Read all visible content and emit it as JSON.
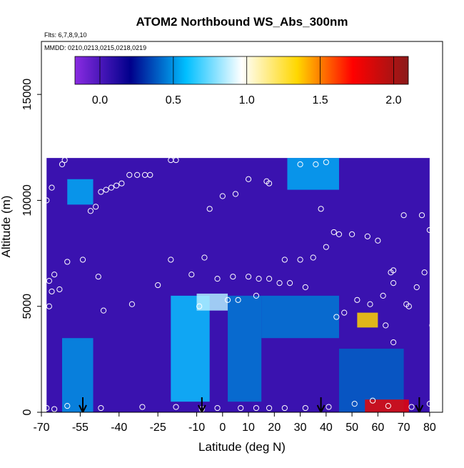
{
  "chart_data": {
    "type": "heatmap",
    "title": "ATOM2 Northbound WS_Abs_300nm",
    "note_flights": "Flts: 6,7,8,9,10",
    "note_dates": "MMDD: 0210,0213,0215,0218,0219",
    "xlabel": "Latitude (deg N)",
    "ylabel": "Altitude (m)",
    "xlim": [
      -70,
      85
    ],
    "ylim": [
      0,
      17500
    ],
    "x_ticks": [
      -70,
      -55,
      -40,
      -25,
      -10,
      0,
      10,
      20,
      30,
      40,
      50,
      60,
      70,
      80
    ],
    "x_tick_labels": [
      "-70",
      "-55",
      "-40",
      "-25",
      "-10",
      "0",
      "10",
      "20",
      "30",
      "40",
      "50",
      "60",
      "70",
      "80"
    ],
    "y_ticks": [
      0,
      5000,
      10000,
      15000
    ],
    "y_tick_labels": [
      "0",
      "5000",
      "10000",
      "15000"
    ],
    "colorbar": {
      "range": [
        -0.17,
        2.1
      ],
      "ticks": [
        0.0,
        0.5,
        1.0,
        1.5,
        2.0
      ],
      "tick_labels": [
        "0.0",
        "0.5",
        "1.0",
        "1.5",
        "2.0"
      ],
      "colors": [
        "#8a2be2",
        "#00008b",
        "#00bfff",
        "#ffffff",
        "#ffd700",
        "#ff0000",
        "#8b1a1a"
      ]
    },
    "arrows_x": [
      -54,
      -8,
      38,
      76
    ],
    "regions": [
      {
        "x": [
          -68,
          80
        ],
        "y": [
          0,
          12000
        ],
        "value": 0.05
      },
      {
        "x": [
          -62,
          -50
        ],
        "y": [
          0,
          3500
        ],
        "value": 0.5
      },
      {
        "x": [
          -20,
          -5
        ],
        "y": [
          500,
          5500
        ],
        "value": 0.6
      },
      {
        "x": [
          -10,
          2
        ],
        "y": [
          4800,
          5600
        ],
        "value": 0.85
      },
      {
        "x": [
          2,
          15
        ],
        "y": [
          500,
          5500
        ],
        "value": 0.45
      },
      {
        "x": [
          15,
          45
        ],
        "y": [
          3500,
          5500
        ],
        "value": 0.45
      },
      {
        "x": [
          45,
          70
        ],
        "y": [
          0,
          3000
        ],
        "value": 0.4
      },
      {
        "x": [
          52,
          60
        ],
        "y": [
          4000,
          4700
        ],
        "value": 1.35
      },
      {
        "x": [
          55,
          72
        ],
        "y": [
          0,
          600
        ],
        "value": 1.8
      },
      {
        "x": [
          -60,
          -50
        ],
        "y": [
          9800,
          11000
        ],
        "value": 0.55
      },
      {
        "x": [
          25,
          45
        ],
        "y": [
          10500,
          12000
        ],
        "value": 0.55
      }
    ],
    "sample_points": [
      {
        "x": -68,
        "y": 10000
      },
      {
        "x": -66,
        "y": 10600
      },
      {
        "x": -62,
        "y": 11700
      },
      {
        "x": -61,
        "y": 11900
      },
      {
        "x": -67,
        "y": 6200
      },
      {
        "x": -66,
        "y": 5700
      },
      {
        "x": -67,
        "y": 5000
      },
      {
        "x": -65,
        "y": 6500
      },
      {
        "x": -63,
        "y": 5800
      },
      {
        "x": -60,
        "y": 7100
      },
      {
        "x": -54,
        "y": 7200
      },
      {
        "x": -48,
        "y": 6400
      },
      {
        "x": -46,
        "y": 4800
      },
      {
        "x": -51,
        "y": 9500
      },
      {
        "x": -49,
        "y": 9700
      },
      {
        "x": -47,
        "y": 10400
      },
      {
        "x": -45,
        "y": 10500
      },
      {
        "x": -43,
        "y": 10600
      },
      {
        "x": -41,
        "y": 10700
      },
      {
        "x": -39,
        "y": 10800
      },
      {
        "x": -36,
        "y": 11200
      },
      {
        "x": -33,
        "y": 11200
      },
      {
        "x": -30,
        "y": 11200
      },
      {
        "x": -28,
        "y": 11200
      },
      {
        "x": -20,
        "y": 11900
      },
      {
        "x": -18,
        "y": 11900
      },
      {
        "x": -25,
        "y": 6000
      },
      {
        "x": -20,
        "y": 7200
      },
      {
        "x": -35,
        "y": 5100
      },
      {
        "x": -12,
        "y": 6500
      },
      {
        "x": -7,
        "y": 7300
      },
      {
        "x": -5,
        "y": 9600
      },
      {
        "x": 0,
        "y": 10200
      },
      {
        "x": 5,
        "y": 10300
      },
      {
        "x": 10,
        "y": 11000
      },
      {
        "x": 17,
        "y": 10900
      },
      {
        "x": 18,
        "y": 10800
      },
      {
        "x": 30,
        "y": 11700
      },
      {
        "x": 36,
        "y": 11700
      },
      {
        "x": 40,
        "y": 11800
      },
      {
        "x": -2,
        "y": 6300
      },
      {
        "x": 4,
        "y": 6400
      },
      {
        "x": 10,
        "y": 6400
      },
      {
        "x": 14,
        "y": 6300
      },
      {
        "x": 18,
        "y": 6300
      },
      {
        "x": 22,
        "y": 6100
      },
      {
        "x": 26,
        "y": 6100
      },
      {
        "x": 32,
        "y": 5900
      },
      {
        "x": 24,
        "y": 7200
      },
      {
        "x": 30,
        "y": 7200
      },
      {
        "x": 35,
        "y": 7300
      },
      {
        "x": 40,
        "y": 7800
      },
      {
        "x": 38,
        "y": 9600
      },
      {
        "x": 43,
        "y": 8500
      },
      {
        "x": 45,
        "y": 8400
      },
      {
        "x": 50,
        "y": 8400
      },
      {
        "x": 56,
        "y": 8300
      },
      {
        "x": 60,
        "y": 8100
      },
      {
        "x": 70,
        "y": 9300
      },
      {
        "x": 77,
        "y": 9300
      },
      {
        "x": 80,
        "y": 8600
      },
      {
        "x": -9,
        "y": 5000
      },
      {
        "x": 2,
        "y": 5300
      },
      {
        "x": 6,
        "y": 5300
      },
      {
        "x": 13,
        "y": 5500
      },
      {
        "x": 44,
        "y": 4500
      },
      {
        "x": 47,
        "y": 4700
      },
      {
        "x": 52,
        "y": 5300
      },
      {
        "x": 57,
        "y": 5100
      },
      {
        "x": 62,
        "y": 5500
      },
      {
        "x": 65,
        "y": 6600
      },
      {
        "x": 66,
        "y": 6700
      },
      {
        "x": 66,
        "y": 6100
      },
      {
        "x": 71,
        "y": 5100
      },
      {
        "x": 72,
        "y": 5000
      },
      {
        "x": 75,
        "y": 5900
      },
      {
        "x": 78,
        "y": 6600
      },
      {
        "x": 81,
        "y": 4100
      },
      {
        "x": 66,
        "y": 3300
      },
      {
        "x": 63,
        "y": 4100
      },
      {
        "x": -68,
        "y": 200
      },
      {
        "x": -65,
        "y": 150
      },
      {
        "x": -60,
        "y": 300
      },
      {
        "x": -47,
        "y": 200
      },
      {
        "x": -31,
        "y": 250
      },
      {
        "x": -18,
        "y": 250
      },
      {
        "x": -8,
        "y": 150
      },
      {
        "x": -2,
        "y": 200
      },
      {
        "x": 7,
        "y": 200
      },
      {
        "x": 13,
        "y": 200
      },
      {
        "x": 18,
        "y": 200
      },
      {
        "x": 24,
        "y": 200
      },
      {
        "x": 32,
        "y": 200
      },
      {
        "x": 41,
        "y": 250
      },
      {
        "x": 51,
        "y": 400
      },
      {
        "x": 58,
        "y": 550
      },
      {
        "x": 64,
        "y": 300
      },
      {
        "x": 73,
        "y": 250
      },
      {
        "x": 80,
        "y": 400
      }
    ]
  }
}
